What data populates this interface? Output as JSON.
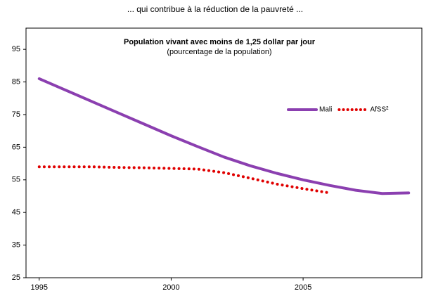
{
  "chart_data": {
    "type": "line",
    "heading": "... qui contribue à la réduction de la pauvreté ...",
    "title": "Population vivant avec moins de 1,25 dollar par jour",
    "subtitle": "(pourcentage de la population)",
    "x": [
      1995,
      1996,
      1997,
      1998,
      1999,
      2000,
      2001,
      2002,
      2003,
      2004,
      2005,
      2006,
      2007,
      2008,
      2009
    ],
    "series": [
      {
        "name": "Mali",
        "color": "#8b3fb0",
        "style": "solid",
        "values": [
          86,
          82.5,
          79,
          75.5,
          72,
          68.5,
          65.2,
          62,
          59.3,
          57,
          55,
          53.3,
          51.8,
          50.8,
          51
        ]
      },
      {
        "name": "AfSS²",
        "color": "#e00000",
        "style": "dotted",
        "values": [
          59,
          59,
          59,
          58.8,
          58.7,
          58.5,
          58.3,
          57.2,
          55.5,
          53.7,
          52.3,
          51,
          null,
          null,
          null
        ]
      }
    ],
    "xlim": [
      1994.5,
      2009.5
    ],
    "xticks": [
      1995,
      2000,
      2005
    ],
    "ylim": [
      25,
      101.5
    ],
    "yticks": [
      25,
      35,
      45,
      55,
      65,
      75,
      85,
      95
    ],
    "legend": "upper right"
  }
}
